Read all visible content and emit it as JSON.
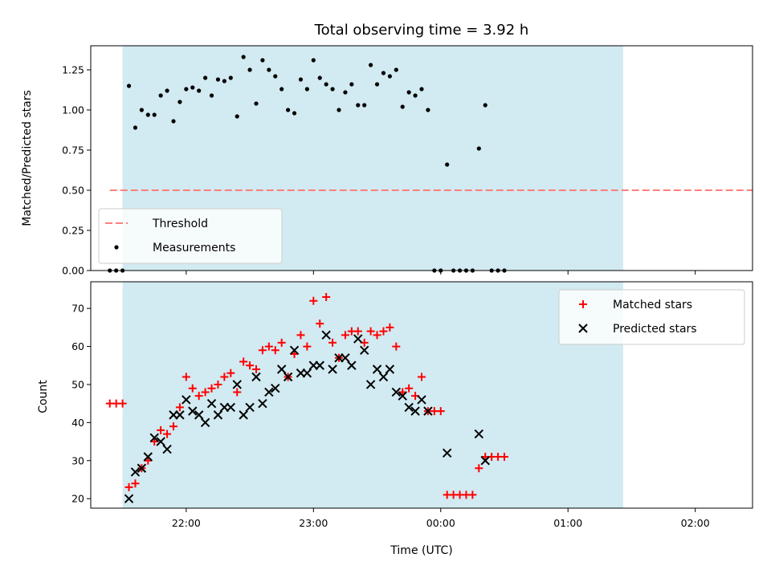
{
  "chart_data": [
    {
      "type": "scatter",
      "title": "Total observing time = 3.92 h",
      "xlabel": "",
      "ylabel": "Matched/Predicted stars",
      "ylim": [
        0,
        1.4
      ],
      "xlim": [
        "21:15",
        "02:27"
      ],
      "y_ticks": [
        "0.00",
        "0.25",
        "0.50",
        "0.75",
        "1.00",
        "1.25"
      ],
      "shaded_span": {
        "start": "21:30",
        "end": "01:26",
        "color": "#add8e6"
      },
      "threshold": {
        "name": "Threshold",
        "y": 0.5,
        "x_start": "21:24",
        "x_end": "02:27",
        "color": "#ff7f7f"
      },
      "legend_position": "lower-left",
      "series": [
        {
          "name": "Measurements",
          "color": "#000000",
          "points": [
            [
              "21:24",
              0.0
            ],
            [
              "21:27",
              0.0
            ],
            [
              "21:30",
              0.0
            ],
            [
              "21:33",
              1.15
            ],
            [
              "21:36",
              0.89
            ],
            [
              "21:39",
              1.0
            ],
            [
              "21:42",
              0.97
            ],
            [
              "21:45",
              0.97
            ],
            [
              "21:48",
              1.09
            ],
            [
              "21:51",
              1.12
            ],
            [
              "21:54",
              0.93
            ],
            [
              "21:57",
              1.05
            ],
            [
              "22:00",
              1.13
            ],
            [
              "22:03",
              1.14
            ],
            [
              "22:06",
              1.12
            ],
            [
              "22:09",
              1.2
            ],
            [
              "22:12",
              1.09
            ],
            [
              "22:15",
              1.19
            ],
            [
              "22:18",
              1.18
            ],
            [
              "22:21",
              1.2
            ],
            [
              "22:24",
              0.96
            ],
            [
              "22:27",
              1.33
            ],
            [
              "22:30",
              1.25
            ],
            [
              "22:33",
              1.04
            ],
            [
              "22:36",
              1.31
            ],
            [
              "22:39",
              1.25
            ],
            [
              "22:42",
              1.21
            ],
            [
              "22:45",
              1.13
            ],
            [
              "22:48",
              1.0
            ],
            [
              "22:51",
              0.98
            ],
            [
              "22:54",
              1.19
            ],
            [
              "22:57",
              1.13
            ],
            [
              "23:00",
              1.31
            ],
            [
              "23:03",
              1.2
            ],
            [
              "23:06",
              1.16
            ],
            [
              "23:09",
              1.13
            ],
            [
              "23:12",
              1.0
            ],
            [
              "23:15",
              1.11
            ],
            [
              "23:18",
              1.16
            ],
            [
              "23:21",
              1.03
            ],
            [
              "23:24",
              1.03
            ],
            [
              "23:27",
              1.28
            ],
            [
              "23:30",
              1.16
            ],
            [
              "23:33",
              1.23
            ],
            [
              "23:36",
              1.21
            ],
            [
              "23:39",
              1.25
            ],
            [
              "23:42",
              1.02
            ],
            [
              "23:45",
              1.11
            ],
            [
              "23:48",
              1.09
            ],
            [
              "23:51",
              1.13
            ],
            [
              "23:54",
              1.0
            ],
            [
              "23:57",
              0.0
            ],
            [
              "00:00",
              0.0
            ],
            [
              "00:03",
              0.66
            ],
            [
              "00:06",
              0.0
            ],
            [
              "00:09",
              0.0
            ],
            [
              "00:12",
              0.0
            ],
            [
              "00:15",
              0.0
            ],
            [
              "00:18",
              0.76
            ],
            [
              "00:21",
              1.03
            ],
            [
              "00:24",
              0.0
            ],
            [
              "00:27",
              0.0
            ],
            [
              "00:30",
              0.0
            ]
          ]
        }
      ]
    },
    {
      "type": "scatter",
      "title": "",
      "xlabel": "Time (UTC)",
      "ylabel": "Count",
      "ylim": [
        17.5,
        77
      ],
      "xlim": [
        "21:15",
        "02:27"
      ],
      "y_ticks": [
        "20",
        "30",
        "40",
        "50",
        "60",
        "70"
      ],
      "x_ticks": [
        "22:00",
        "23:00",
        "00:00",
        "01:00",
        "02:00"
      ],
      "shaded_span": {
        "start": "21:30",
        "end": "01:26",
        "color": "#add8e6"
      },
      "legend_position": "top-right",
      "series": [
        {
          "name": "Matched stars",
          "marker": "+",
          "color": "#ff0000",
          "points": [
            [
              "21:24",
              45
            ],
            [
              "21:27",
              45
            ],
            [
              "21:30",
              45
            ],
            [
              "21:33",
              23
            ],
            [
              "21:36",
              24
            ],
            [
              "21:39",
              28
            ],
            [
              "21:42",
              30
            ],
            [
              "21:45",
              35
            ],
            [
              "21:48",
              38
            ],
            [
              "21:51",
              37
            ],
            [
              "21:54",
              39
            ],
            [
              "21:57",
              44
            ],
            [
              "22:00",
              52
            ],
            [
              "22:03",
              49
            ],
            [
              "22:06",
              47
            ],
            [
              "22:09",
              48
            ],
            [
              "22:12",
              49
            ],
            [
              "22:15",
              50
            ],
            [
              "22:18",
              52
            ],
            [
              "22:21",
              53
            ],
            [
              "22:24",
              48
            ],
            [
              "22:27",
              56
            ],
            [
              "22:30",
              55
            ],
            [
              "22:33",
              54
            ],
            [
              "22:36",
              59
            ],
            [
              "22:39",
              60
            ],
            [
              "22:42",
              59
            ],
            [
              "22:45",
              61
            ],
            [
              "22:48",
              52
            ],
            [
              "22:51",
              58
            ],
            [
              "22:54",
              63
            ],
            [
              "22:57",
              60
            ],
            [
              "23:00",
              72
            ],
            [
              "23:03",
              66
            ],
            [
              "23:06",
              73
            ],
            [
              "23:09",
              61
            ],
            [
              "23:12",
              57
            ],
            [
              "23:15",
              63
            ],
            [
              "23:18",
              64
            ],
            [
              "23:21",
              64
            ],
            [
              "23:24",
              61
            ],
            [
              "23:27",
              64
            ],
            [
              "23:30",
              63
            ],
            [
              "23:33",
              64
            ],
            [
              "23:36",
              65
            ],
            [
              "23:39",
              60
            ],
            [
              "23:42",
              48
            ],
            [
              "23:45",
              49
            ],
            [
              "23:48",
              47
            ],
            [
              "23:51",
              52
            ],
            [
              "23:54",
              43
            ],
            [
              "23:57",
              43
            ],
            [
              "00:00",
              43
            ],
            [
              "00:03",
              21
            ],
            [
              "00:06",
              21
            ],
            [
              "00:09",
              21
            ],
            [
              "00:12",
              21
            ],
            [
              "00:15",
              21
            ],
            [
              "00:18",
              28
            ],
            [
              "00:21",
              31
            ],
            [
              "00:24",
              31
            ],
            [
              "00:27",
              31
            ],
            [
              "00:30",
              31
            ]
          ]
        },
        {
          "name": "Predicted stars",
          "marker": "x",
          "color": "#000000",
          "points": [
            [
              "21:33",
              20
            ],
            [
              "21:36",
              27
            ],
            [
              "21:39",
              28
            ],
            [
              "21:42",
              31
            ],
            [
              "21:45",
              36
            ],
            [
              "21:48",
              35
            ],
            [
              "21:51",
              33
            ],
            [
              "21:54",
              42
            ],
            [
              "21:57",
              42
            ],
            [
              "22:00",
              46
            ],
            [
              "22:03",
              43
            ],
            [
              "22:06",
              42
            ],
            [
              "22:09",
              40
            ],
            [
              "22:12",
              45
            ],
            [
              "22:15",
              42
            ],
            [
              "22:18",
              44
            ],
            [
              "22:21",
              44
            ],
            [
              "22:24",
              50
            ],
            [
              "22:27",
              42
            ],
            [
              "22:30",
              44
            ],
            [
              "22:33",
              52
            ],
            [
              "22:36",
              45
            ],
            [
              "22:39",
              48
            ],
            [
              "22:42",
              49
            ],
            [
              "22:45",
              54
            ],
            [
              "22:48",
              52
            ],
            [
              "22:51",
              59
            ],
            [
              "22:54",
              53
            ],
            [
              "22:57",
              53
            ],
            [
              "23:00",
              55
            ],
            [
              "23:03",
              55
            ],
            [
              "23:06",
              63
            ],
            [
              "23:09",
              54
            ],
            [
              "23:12",
              57
            ],
            [
              "23:15",
              57
            ],
            [
              "23:18",
              55
            ],
            [
              "23:21",
              62
            ],
            [
              "23:24",
              59
            ],
            [
              "23:27",
              50
            ],
            [
              "23:30",
              54
            ],
            [
              "23:33",
              52
            ],
            [
              "23:36",
              54
            ],
            [
              "23:39",
              48
            ],
            [
              "23:42",
              47
            ],
            [
              "23:45",
              44
            ],
            [
              "23:48",
              43
            ],
            [
              "23:51",
              46
            ],
            [
              "23:54",
              43
            ],
            [
              "00:03",
              32
            ],
            [
              "00:18",
              37
            ],
            [
              "00:21",
              30
            ]
          ]
        }
      ]
    }
  ]
}
